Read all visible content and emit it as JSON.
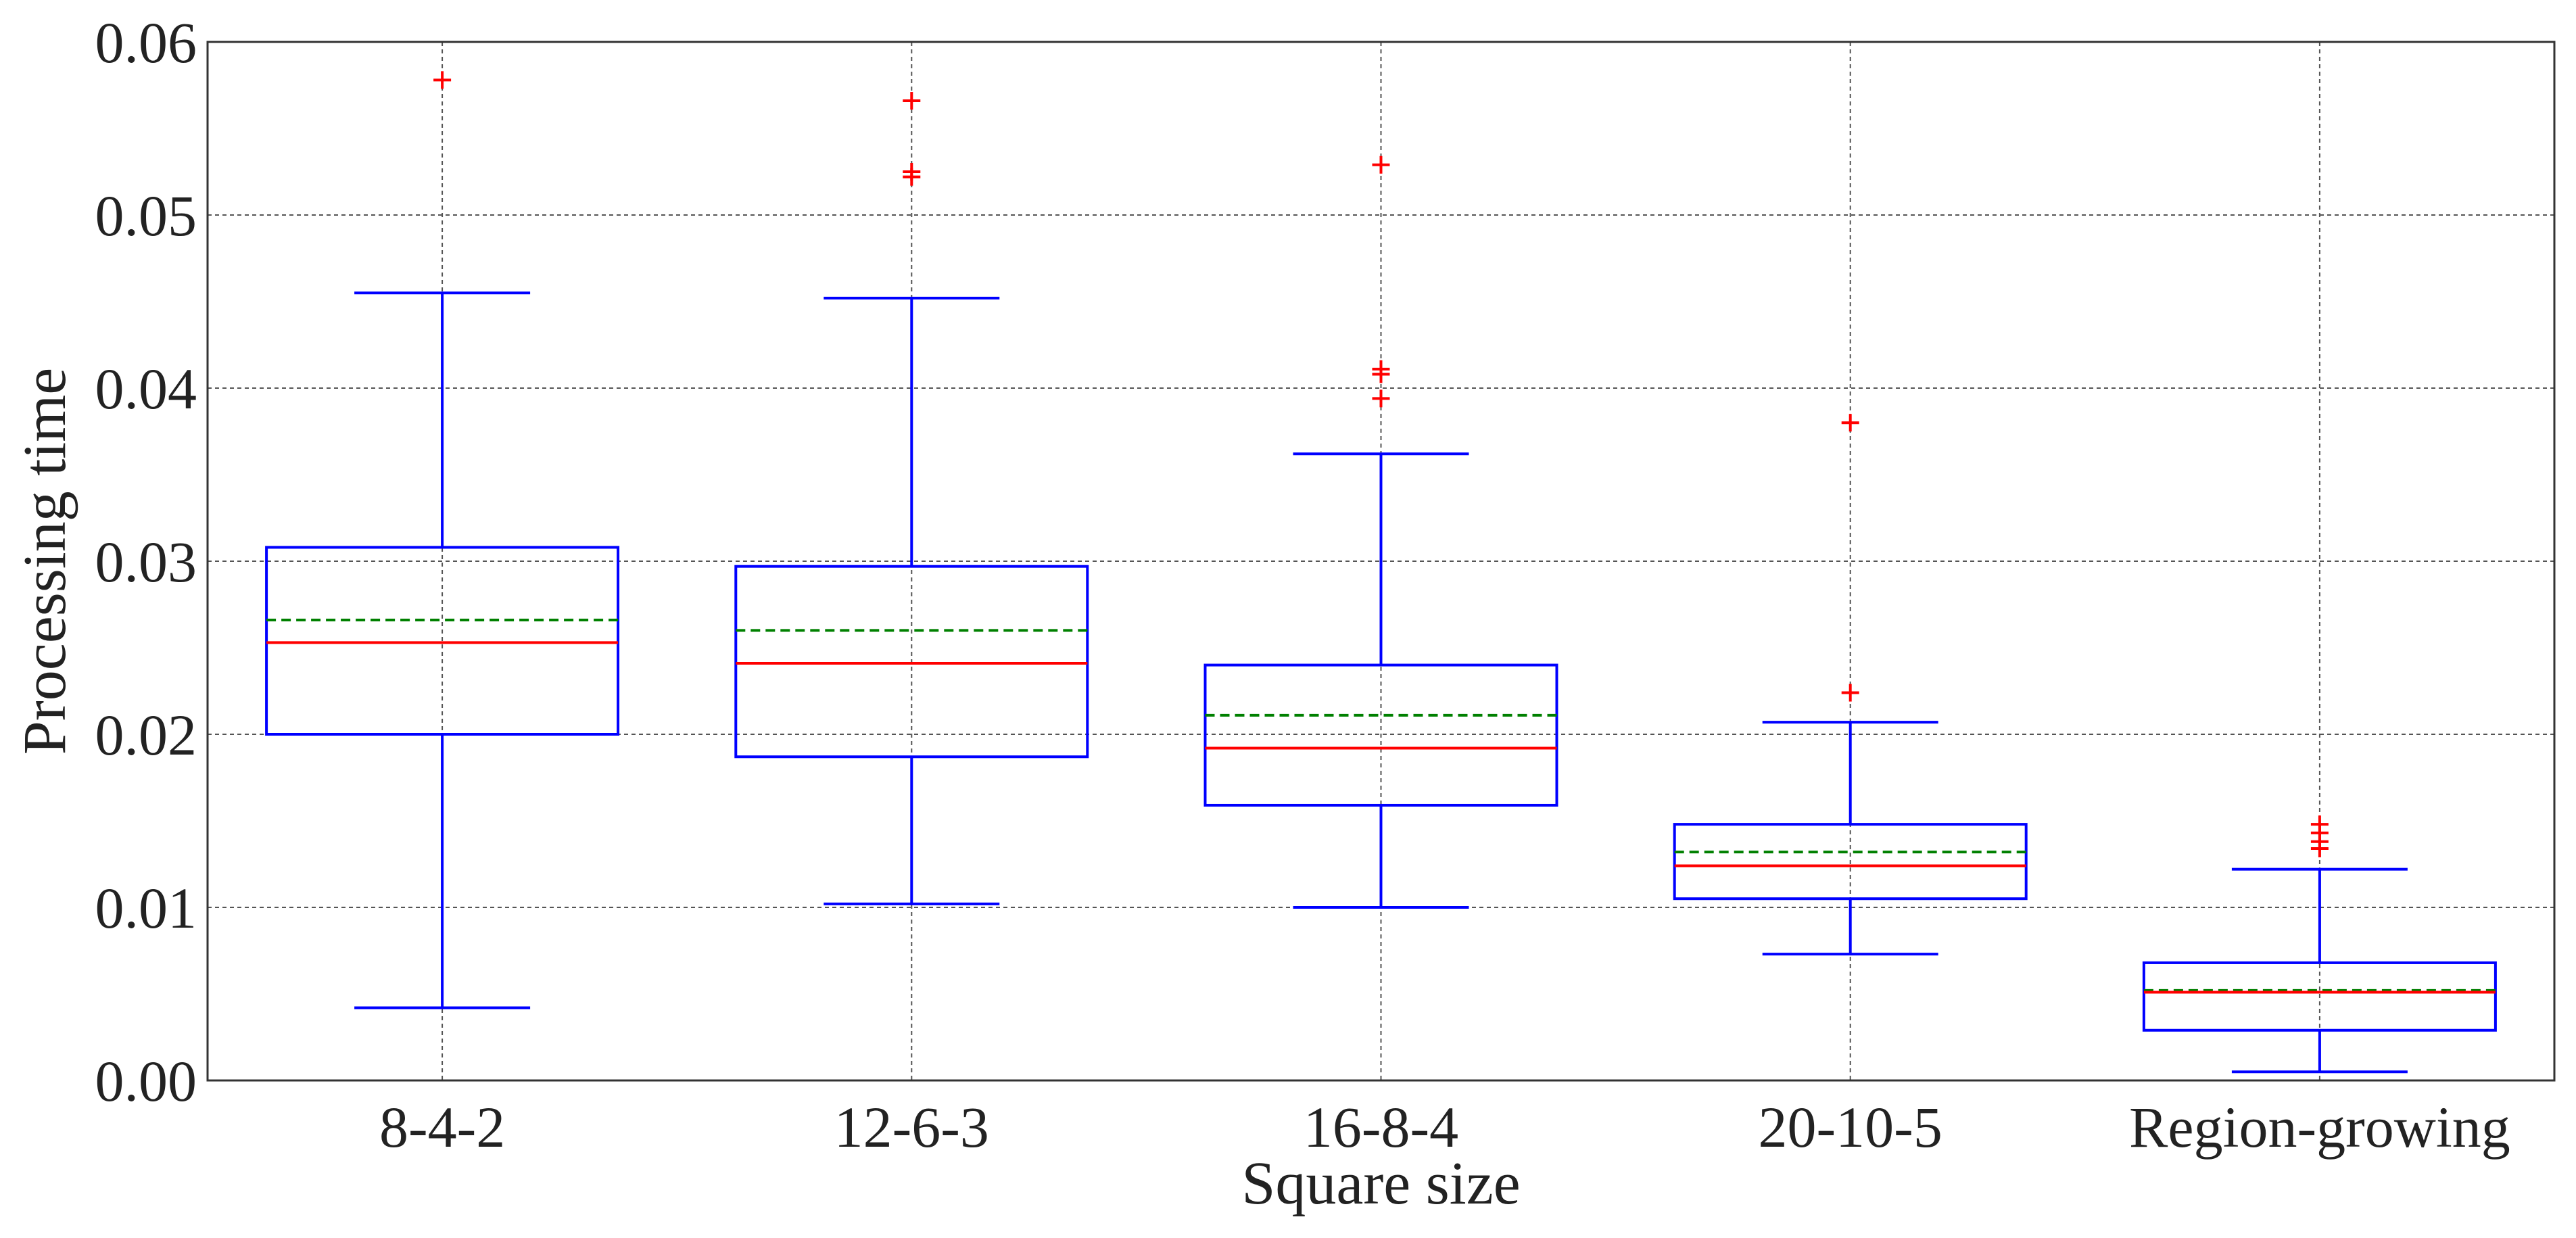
{
  "chart_data": {
    "type": "box",
    "title": "",
    "xlabel": "Square size",
    "ylabel": "Processing time",
    "ylim": [
      0.0,
      0.06
    ],
    "yticks": [
      "0.00",
      "0.01",
      "0.02",
      "0.03",
      "0.04",
      "0.05",
      "0.06"
    ],
    "grid": true,
    "categories": [
      "8-4-2",
      "12-6-3",
      "16-8-4",
      "20-10-5",
      "Region-growing"
    ],
    "boxes": [
      {
        "category": "8-4-2",
        "whisker_low": 0.0042,
        "q1": 0.02,
        "median": 0.0253,
        "mean": 0.0266,
        "q3": 0.0308,
        "whisker_high": 0.0455,
        "outliers": [
          0.0578
        ]
      },
      {
        "category": "12-6-3",
        "whisker_low": 0.0102,
        "q1": 0.0187,
        "median": 0.0241,
        "mean": 0.026,
        "q3": 0.0297,
        "whisker_high": 0.0452,
        "outliers": [
          0.0522,
          0.0525,
          0.0566
        ]
      },
      {
        "category": "16-8-4",
        "whisker_low": 0.01,
        "q1": 0.0159,
        "median": 0.0192,
        "mean": 0.0211,
        "q3": 0.024,
        "whisker_high": 0.0362,
        "outliers": [
          0.0394,
          0.0408,
          0.0411,
          0.0529
        ]
      },
      {
        "category": "20-10-5",
        "whisker_low": 0.0073,
        "q1": 0.0105,
        "median": 0.0124,
        "mean": 0.0132,
        "q3": 0.0148,
        "whisker_high": 0.0207,
        "outliers": [
          0.0224,
          0.038
        ]
      },
      {
        "category": "Region-growing",
        "whisker_low": 0.0005,
        "q1": 0.0029,
        "median": 0.0051,
        "mean": 0.0052,
        "q3": 0.0068,
        "whisker_high": 0.0122,
        "outliers": [
          0.0134,
          0.0138,
          0.0143,
          0.0148
        ]
      }
    ],
    "colors": {
      "box": "#0000ff",
      "median": "#ff0000",
      "mean": "#008000",
      "outlier": "#ff0000",
      "grid": "#555555",
      "axes": "#333333"
    }
  }
}
